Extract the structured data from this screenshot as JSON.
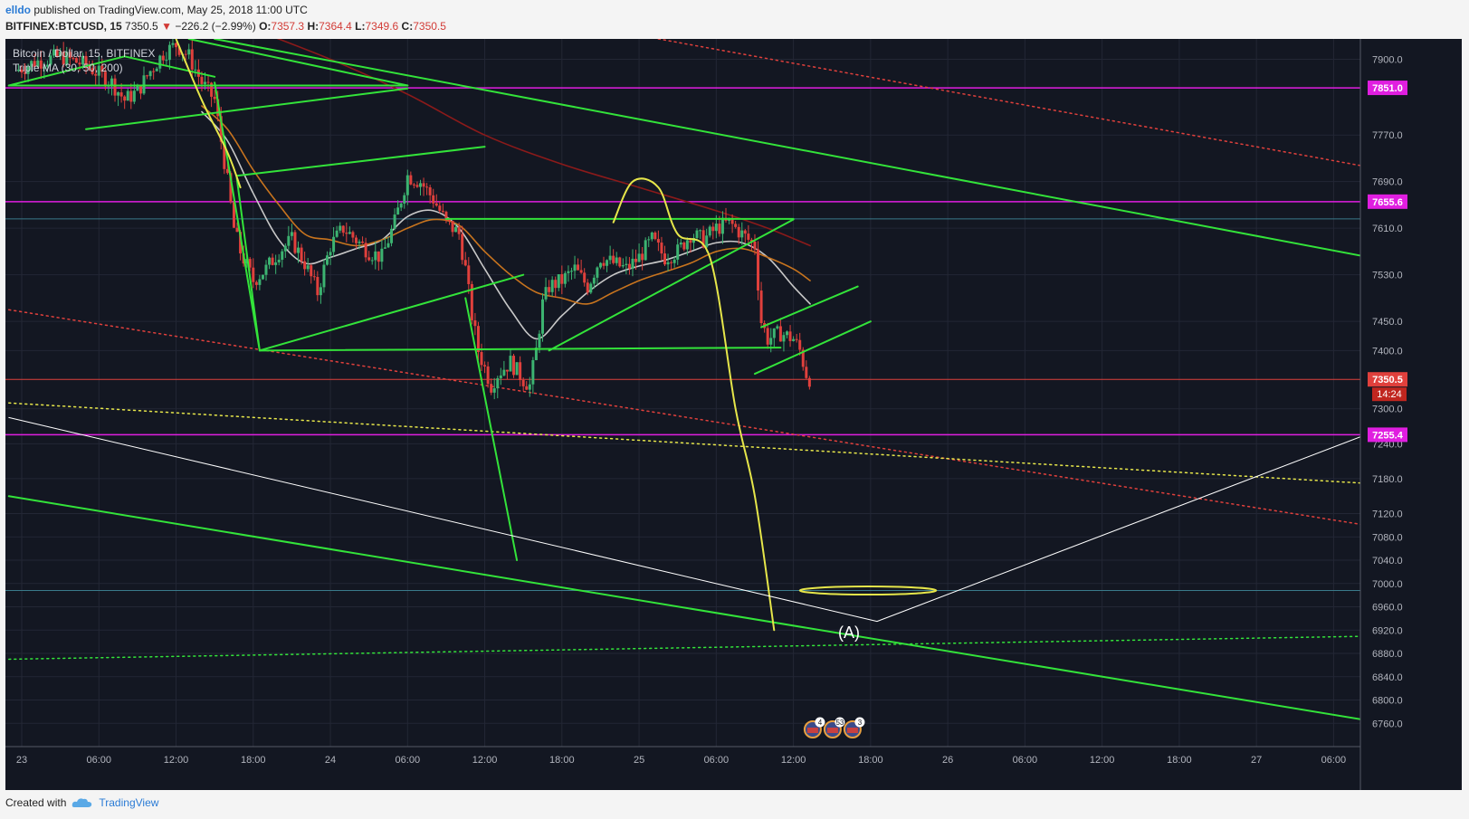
{
  "header": {
    "user": "elldo",
    "published_text": "published on TradingView.com, May 25, 2018 11:00 UTC",
    "symbol": "BITFINEX:BTCUSD, 15",
    "last": "7350.5",
    "change_arrow": "▼",
    "change": "−226.2 (−2.99%)",
    "o_label": "O:",
    "o": "7357.3",
    "h_label": "H:",
    "h": "7364.4",
    "l_label": "L:",
    "l": "7349.6",
    "c_label": "C:",
    "c": "7350.5"
  },
  "legend": {
    "title": "Bitcoin / Dollar, 15, BITFINEX",
    "indicator": "Triple MA (30, 50, 200)"
  },
  "footer": {
    "created_with": "Created with",
    "brand": "TradingView"
  },
  "colors": {
    "background": "#131722",
    "up": "#3cb371",
    "down": "#e0403c",
    "trendline": "#33e33a",
    "magenta": "#e01ee0",
    "yellow": "#e6e64a",
    "ma30": "#c8c8c8",
    "ma50": "#c8741e",
    "ma200": "#8b1a1a"
  },
  "chart_data": {
    "type": "candlestick",
    "timeframe": "15",
    "ylim": [
      6720,
      7935
    ],
    "y_ticks": [
      7900,
      7770,
      7690,
      7610,
      7530,
      7450,
      7400,
      7300,
      7240,
      7180,
      7120,
      7080,
      7040,
      7000,
      6960,
      6920,
      6880,
      6840,
      6800,
      6760
    ],
    "x_ticks": [
      {
        "label": "23",
        "t": 0
      },
      {
        "label": "06:00",
        "t": 6
      },
      {
        "label": "12:00",
        "t": 12
      },
      {
        "label": "18:00",
        "t": 18
      },
      {
        "label": "24",
        "t": 24
      },
      {
        "label": "06:00",
        "t": 30
      },
      {
        "label": "12:00",
        "t": 36
      },
      {
        "label": "18:00",
        "t": 42
      },
      {
        "label": "25",
        "t": 48
      },
      {
        "label": "06:00",
        "t": 54
      },
      {
        "label": "12:00",
        "t": 60
      },
      {
        "label": "18:00",
        "t": 66
      },
      {
        "label": "26",
        "t": 72
      },
      {
        "label": "06:00",
        "t": 78
      },
      {
        "label": "12:00",
        "t": 84
      },
      {
        "label": "18:00",
        "t": 90
      },
      {
        "label": "27",
        "t": 96
      },
      {
        "label": "06:00",
        "t": 102
      }
    ],
    "price_levels": [
      {
        "label": "7851.0",
        "price": 7851.0,
        "color": "#e01ee0"
      },
      {
        "label": "7655.6",
        "price": 7655.6,
        "color": "#e01ee0"
      },
      {
        "label": "7255.4",
        "price": 7255.4,
        "color": "#e01ee0"
      }
    ],
    "current_price": {
      "label": "7350.5",
      "price": 7350.5,
      "countdown": "14:24"
    },
    "projection_label": "(A)",
    "event_badges": [
      "4",
      "53",
      "3"
    ],
    "close_path": [
      [
        -0.5,
        7880
      ],
      [
        1,
        7895
      ],
      [
        3,
        7905
      ],
      [
        5,
        7890
      ],
      [
        7,
        7860
      ],
      [
        8,
        7830
      ],
      [
        9,
        7845
      ],
      [
        10,
        7880
      ],
      [
        11,
        7910
      ],
      [
        12,
        7925
      ],
      [
        13,
        7905
      ],
      [
        14,
        7860
      ],
      [
        15,
        7830
      ],
      [
        16,
        7690
      ],
      [
        16.5,
        7610
      ],
      [
        17,
        7570
      ],
      [
        18,
        7520
      ],
      [
        19,
        7540
      ],
      [
        20,
        7570
      ],
      [
        21,
        7590
      ],
      [
        22,
        7550
      ],
      [
        23,
        7500
      ],
      [
        24,
        7580
      ],
      [
        25,
        7610
      ],
      [
        26,
        7590
      ],
      [
        27,
        7570
      ],
      [
        28,
        7560
      ],
      [
        29,
        7620
      ],
      [
        30,
        7700
      ],
      [
        31,
        7690
      ],
      [
        32,
        7660
      ],
      [
        33,
        7620
      ],
      [
        34,
        7600
      ],
      [
        34.5,
        7540
      ],
      [
        35,
        7460
      ],
      [
        35.5,
        7400
      ],
      [
        36,
        7370
      ],
      [
        36.5,
        7340
      ],
      [
        37,
        7360
      ],
      [
        38,
        7380
      ],
      [
        39,
        7350
      ],
      [
        39.5,
        7340
      ],
      [
        40,
        7400
      ],
      [
        40.5,
        7480
      ],
      [
        41,
        7510
      ],
      [
        42,
        7520
      ],
      [
        43,
        7540
      ],
      [
        44,
        7510
      ],
      [
        45,
        7560
      ],
      [
        46,
        7550
      ],
      [
        47,
        7540
      ],
      [
        48,
        7560
      ],
      [
        49,
        7590
      ],
      [
        50,
        7560
      ],
      [
        51,
        7570
      ],
      [
        52,
        7600
      ],
      [
        53,
        7590
      ],
      [
        54,
        7610
      ],
      [
        55,
        7620
      ],
      [
        56,
        7600
      ],
      [
        57,
        7580
      ],
      [
        57.5,
        7450
      ],
      [
        58,
        7420
      ],
      [
        59,
        7430
      ],
      [
        60,
        7420
      ],
      [
        60.5,
        7400
      ],
      [
        61,
        7360
      ],
      [
        61.3,
        7350.5
      ]
    ],
    "ma_series": [
      {
        "name": "MA 30",
        "color": "#c8c8c8",
        "points": [
          [
            14,
            7810
          ],
          [
            16,
            7760
          ],
          [
            18,
            7670
          ],
          [
            20,
            7590
          ],
          [
            22,
            7550
          ],
          [
            24,
            7560
          ],
          [
            26,
            7575
          ],
          [
            28,
            7590
          ],
          [
            30,
            7630
          ],
          [
            32,
            7640
          ],
          [
            34,
            7610
          ],
          [
            36,
            7540
          ],
          [
            38,
            7470
          ],
          [
            40,
            7420
          ],
          [
            42,
            7460
          ],
          [
            44,
            7500
          ],
          [
            46,
            7530
          ],
          [
            48,
            7545
          ],
          [
            50,
            7555
          ],
          [
            52,
            7570
          ],
          [
            54,
            7585
          ],
          [
            56,
            7585
          ],
          [
            58,
            7560
          ],
          [
            60,
            7510
          ],
          [
            61.3,
            7480
          ]
        ]
      },
      {
        "name": "MA 50",
        "color": "#c8741e",
        "points": [
          [
            14,
            7820
          ],
          [
            16,
            7780
          ],
          [
            18,
            7710
          ],
          [
            20,
            7650
          ],
          [
            22,
            7600
          ],
          [
            24,
            7590
          ],
          [
            26,
            7580
          ],
          [
            28,
            7590
          ],
          [
            30,
            7610
          ],
          [
            32,
            7625
          ],
          [
            34,
            7615
          ],
          [
            36,
            7570
          ],
          [
            38,
            7530
          ],
          [
            40,
            7500
          ],
          [
            42,
            7490
          ],
          [
            44,
            7480
          ],
          [
            46,
            7500
          ],
          [
            48,
            7520
          ],
          [
            50,
            7535
          ],
          [
            52,
            7550
          ],
          [
            54,
            7570
          ],
          [
            56,
            7575
          ],
          [
            58,
            7560
          ],
          [
            60,
            7540
          ],
          [
            61.3,
            7520
          ]
        ]
      },
      {
        "name": "MA 200",
        "color": "#8b1a1a",
        "points": [
          [
            17,
            7960
          ],
          [
            24,
            7900
          ],
          [
            30,
            7840
          ],
          [
            36,
            7770
          ],
          [
            42,
            7720
          ],
          [
            48,
            7680
          ],
          [
            54,
            7640
          ],
          [
            58,
            7610
          ],
          [
            61.3,
            7580
          ]
        ]
      }
    ],
    "drawings": [
      {
        "kind": "line",
        "color": "#33e33a",
        "w": 2,
        "pts": [
          [
            -1,
            7855
          ],
          [
            8,
            7905
          ],
          [
            15,
            7870
          ]
        ]
      },
      {
        "kind": "line",
        "color": "#33e33a",
        "w": 2,
        "pts": [
          [
            -1,
            7855
          ],
          [
            30,
            7855
          ]
        ]
      },
      {
        "kind": "line",
        "color": "#33e33a",
        "w": 2,
        "pts": [
          [
            5,
            7780
          ],
          [
            30,
            7850
          ]
        ]
      },
      {
        "kind": "line",
        "color": "#33e33a",
        "w": 2,
        "pts": [
          [
            13,
            7935
          ],
          [
            30,
            7855
          ]
        ]
      },
      {
        "kind": "line",
        "color": "#33e33a",
        "w": 2,
        "pts": [
          [
            15,
            7935
          ],
          [
            106,
            7555
          ]
        ]
      },
      {
        "kind": "line",
        "color": "#33e33a",
        "w": 2,
        "pts": [
          [
            15,
            7860
          ],
          [
            18.5,
            7400
          ],
          [
            16.7,
            7700
          ],
          [
            36,
            7750
          ]
        ]
      },
      {
        "kind": "line",
        "color": "#33e33a",
        "w": 2,
        "pts": [
          [
            18.5,
            7400
          ],
          [
            39,
            7530
          ]
        ]
      },
      {
        "kind": "line",
        "color": "#33e33a",
        "w": 2,
        "pts": [
          [
            18.5,
            7400
          ],
          [
            59,
            7405
          ]
        ]
      },
      {
        "kind": "line",
        "color": "#33e33a",
        "w": 2,
        "pts": [
          [
            33,
            7626
          ],
          [
            60,
            7626
          ]
        ]
      },
      {
        "kind": "line",
        "color": "#33e33a",
        "w": 2,
        "pts": [
          [
            41,
            7400
          ],
          [
            60,
            7625
          ]
        ]
      },
      {
        "kind": "line",
        "color": "#33e33a",
        "w": 2,
        "pts": [
          [
            34.5,
            7490
          ],
          [
            38.5,
            7040
          ]
        ]
      },
      {
        "kind": "line",
        "color": "#33e33a",
        "w": 2,
        "pts": [
          [
            57.5,
            7440
          ],
          [
            65,
            7510
          ]
        ]
      },
      {
        "kind": "line",
        "color": "#33e33a",
        "w": 2,
        "pts": [
          [
            57,
            7360
          ],
          [
            66,
            7450
          ]
        ]
      },
      {
        "kind": "line",
        "color": "#33e33a",
        "w": 2,
        "pts": [
          [
            -1,
            7150
          ],
          [
            106,
            6760
          ]
        ]
      },
      {
        "kind": "line",
        "color": "#e6e64a",
        "w": 2,
        "curve": true,
        "pts": [
          [
            12,
            7935
          ],
          [
            14,
            7830
          ],
          [
            16,
            7740
          ],
          [
            17,
            7680
          ]
        ]
      },
      {
        "kind": "line",
        "color": "#e6e64a",
        "w": 2,
        "curve": true,
        "pts": [
          [
            46,
            7620
          ],
          [
            47.5,
            7690
          ],
          [
            49.5,
            7680
          ],
          [
            51,
            7600
          ],
          [
            53.5,
            7560
          ],
          [
            55.5,
            7300
          ],
          [
            57,
            7150
          ],
          [
            58.5,
            6920
          ]
        ]
      },
      {
        "kind": "ellipse",
        "color": "#e6e64a",
        "w": 2,
        "t": 65.8,
        "price": 6988,
        "rt": 5.3,
        "rp": 7
      },
      {
        "kind": "line",
        "color": "#ffffff",
        "w": 1,
        "pts": [
          [
            -1,
            7285
          ],
          [
            66.5,
            6935
          ],
          [
            106,
            7268
          ]
        ]
      },
      {
        "kind": "dash",
        "color": "#e0403c",
        "w": 1.5,
        "pts": [
          [
            -1,
            7470
          ],
          [
            106,
            7095
          ]
        ]
      },
      {
        "kind": "dash",
        "color": "#e0403c",
        "w": 1.5,
        "pts": [
          [
            49.5,
            7935
          ],
          [
            106,
            7710
          ]
        ]
      },
      {
        "kind": "dash",
        "color": "#e6e64a",
        "w": 1.5,
        "pts": [
          [
            -1,
            7310
          ],
          [
            106,
            7170
          ]
        ]
      },
      {
        "kind": "dash",
        "color": "#33e33a",
        "w": 1.5,
        "pts": [
          [
            -1,
            6870
          ],
          [
            106,
            6910
          ]
        ]
      }
    ]
  }
}
